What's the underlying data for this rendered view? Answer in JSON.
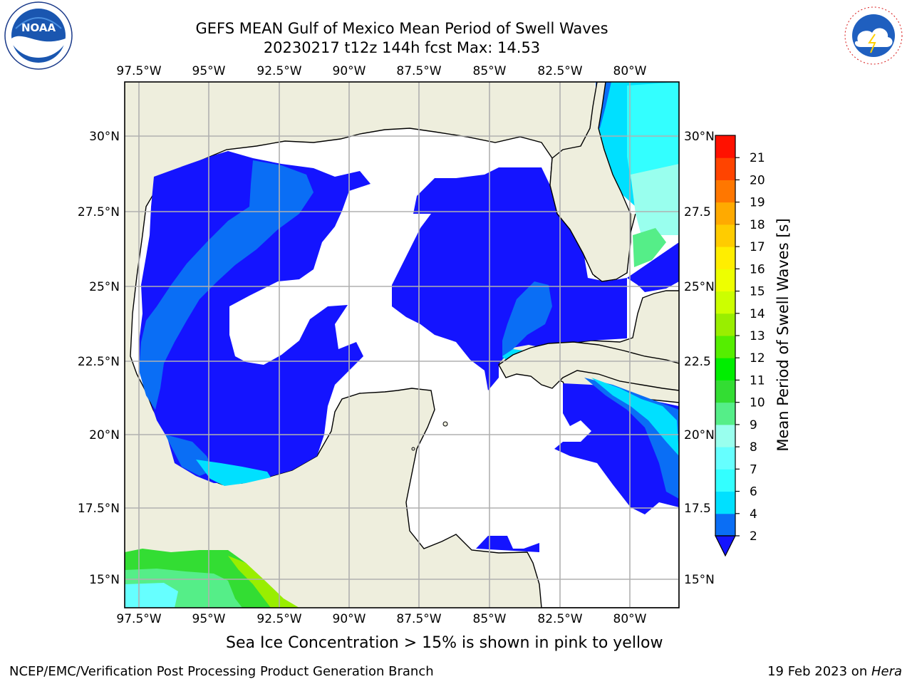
{
  "title": {
    "line1": "GEFS MEAN Gulf of Mexico Mean Period of Swell Waves",
    "line2": "20230217 t12z 144h fcst   Max: 14.53"
  },
  "map": {
    "lon_ticks": [
      "97.5°W",
      "95°W",
      "92.5°W",
      "90°W",
      "87.5°W",
      "85°W",
      "82.5°W",
      "80°W"
    ],
    "lat_ticks": [
      "30°N",
      "27.5°N",
      "25°N",
      "22.5°N",
      "20°N",
      "17.5°N",
      "15°N"
    ],
    "lat_ticks_right": [
      "30°N",
      "27.5",
      "25°N",
      "22.5",
      "20°N",
      "17.5",
      "15°N"
    ],
    "lon_range": [
      -98,
      -79
    ],
    "lat_range": [
      14,
      31.8
    ],
    "land_color": "#eeeedd",
    "no_data_color": "#ffffff",
    "grid": true
  },
  "colorbar": {
    "label": "Mean Period of Swell Waves [s]",
    "ticks": [
      "2",
      "4",
      "6",
      "7",
      "8",
      "9",
      "10",
      "11",
      "12",
      "13",
      "14",
      "15",
      "16",
      "17",
      "18",
      "19",
      "20",
      "21"
    ],
    "colors": [
      "#0a6ef5",
      "#00e0ff",
      "#33ffff",
      "#66ffff",
      "#99ffee",
      "#55ee88",
      "#33dd33",
      "#00ee00",
      "#55ee00",
      "#99ee00",
      "#ccff00",
      "#eeff00",
      "#ffee00",
      "#ffcc00",
      "#ffaa00",
      "#ff7700",
      "#ff4400",
      "#ff1100"
    ],
    "extend": "min",
    "extend_color": "#1414ff"
  },
  "caption": "Sea Ice Concentration > 15% is shown in pink to yellow",
  "footer": {
    "left": "NCEP/EMC/Verification Post Processing Product Generation Branch",
    "date": "19 Feb 2023 on ",
    "machine": "Hera"
  },
  "logos": {
    "noaa_text": "NOAA",
    "nws_text": "NATIONAL WEATHER SERVICE"
  }
}
